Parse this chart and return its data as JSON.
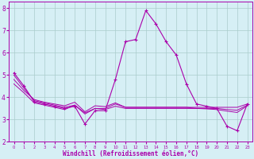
{
  "xlabel": "Windchill (Refroidissement éolien,°C)",
  "background_color": "#d6eff5",
  "line_color": "#aa00aa",
  "grid_color": "#aacccc",
  "x_values": [
    0,
    1,
    2,
    3,
    4,
    5,
    6,
    7,
    8,
    9,
    10,
    11,
    12,
    13,
    14,
    15,
    16,
    17,
    18,
    19,
    20,
    21,
    22,
    23
  ],
  "series1": [
    5.1,
    4.5,
    3.8,
    3.7,
    3.6,
    3.5,
    3.6,
    2.8,
    3.4,
    3.4,
    4.8,
    6.5,
    6.6,
    7.9,
    7.3,
    6.5,
    5.9,
    4.6,
    3.7,
    3.6,
    3.5,
    2.7,
    2.5,
    3.7
  ],
  "series2": [
    5.0,
    4.4,
    3.85,
    3.75,
    3.65,
    3.55,
    3.65,
    3.3,
    3.5,
    3.5,
    3.7,
    3.55,
    3.55,
    3.55,
    3.55,
    3.55,
    3.55,
    3.55,
    3.55,
    3.55,
    3.55,
    3.55,
    3.55,
    3.7
  ],
  "series3": [
    4.6,
    4.2,
    3.75,
    3.65,
    3.55,
    3.45,
    3.65,
    3.25,
    3.5,
    3.45,
    3.6,
    3.5,
    3.5,
    3.5,
    3.5,
    3.5,
    3.5,
    3.5,
    3.5,
    3.5,
    3.5,
    3.45,
    3.42,
    3.65
  ],
  "series4": [
    4.8,
    4.3,
    3.9,
    3.78,
    3.7,
    3.62,
    3.78,
    3.35,
    3.62,
    3.58,
    3.75,
    3.55,
    3.55,
    3.55,
    3.55,
    3.55,
    3.55,
    3.55,
    3.5,
    3.48,
    3.45,
    3.38,
    3.32,
    3.62
  ],
  "ylim": [
    2,
    8.3
  ],
  "yticks": [
    2,
    3,
    4,
    5,
    6,
    7,
    8
  ],
  "xtick_labels": [
    "0",
    "1",
    "2",
    "3",
    "4",
    "5",
    "6",
    "7",
    "8",
    "9",
    "10",
    "11",
    "12",
    "13",
    "14",
    "15",
    "16",
    "17",
    "18",
    "19",
    "20",
    "21",
    "22",
    "23"
  ]
}
